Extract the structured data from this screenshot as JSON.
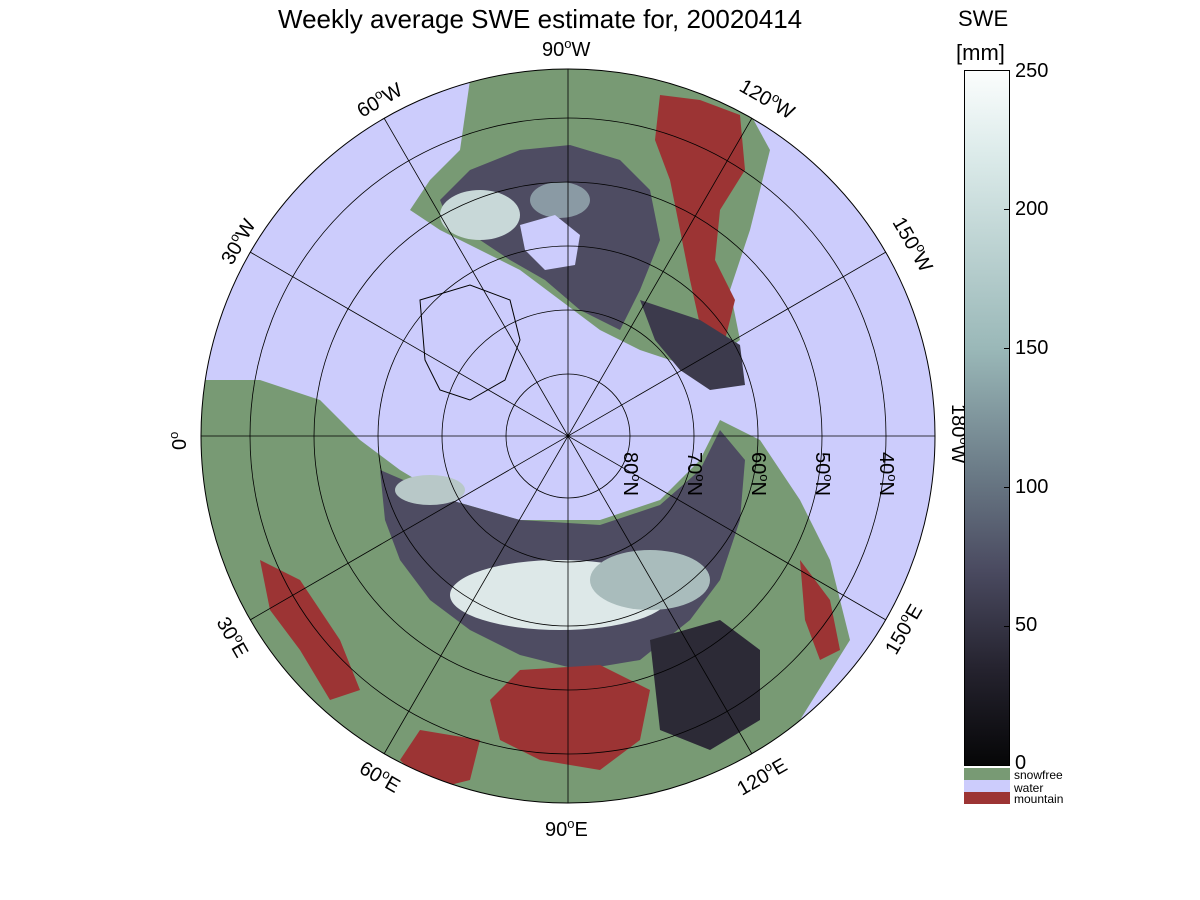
{
  "title": "Weekly average SWE estimate for, 20020414",
  "colorbar": {
    "title_line1": "SWE",
    "title_line2": "[mm]",
    "ticks": [
      "250",
      "200",
      "150",
      "100",
      "50",
      "0"
    ],
    "range": [
      0,
      250
    ]
  },
  "legend": [
    {
      "label": "snowfree",
      "color": "#789a74"
    },
    {
      "label": "water",
      "color": "#ccccfc"
    },
    {
      "label": "mountain",
      "color": "#9c3434"
    }
  ],
  "longitude_labels": {
    "lon_90W": "90",
    "lon_60W": "60",
    "lon_30W": "30",
    "lon_0": "0",
    "lon_120W": "120",
    "lon_150W": "150",
    "lon_180W": "180",
    "lon_30E": "30",
    "lon_60E": "60",
    "lon_90E": "90",
    "lon_120E": "120",
    "lon_150E": "150",
    "deg": "o",
    "W": "W",
    "E": "E"
  },
  "latitude_labels": [
    "80",
    "70",
    "60",
    "50",
    "40"
  ],
  "lat_suffix": "N",
  "colors": {
    "water": "#ccccfc",
    "snowfree": "#789a74",
    "mountain": "#9c3434",
    "snow_low": "#0a0a0c",
    "snow_high": "#f4fafa"
  }
}
